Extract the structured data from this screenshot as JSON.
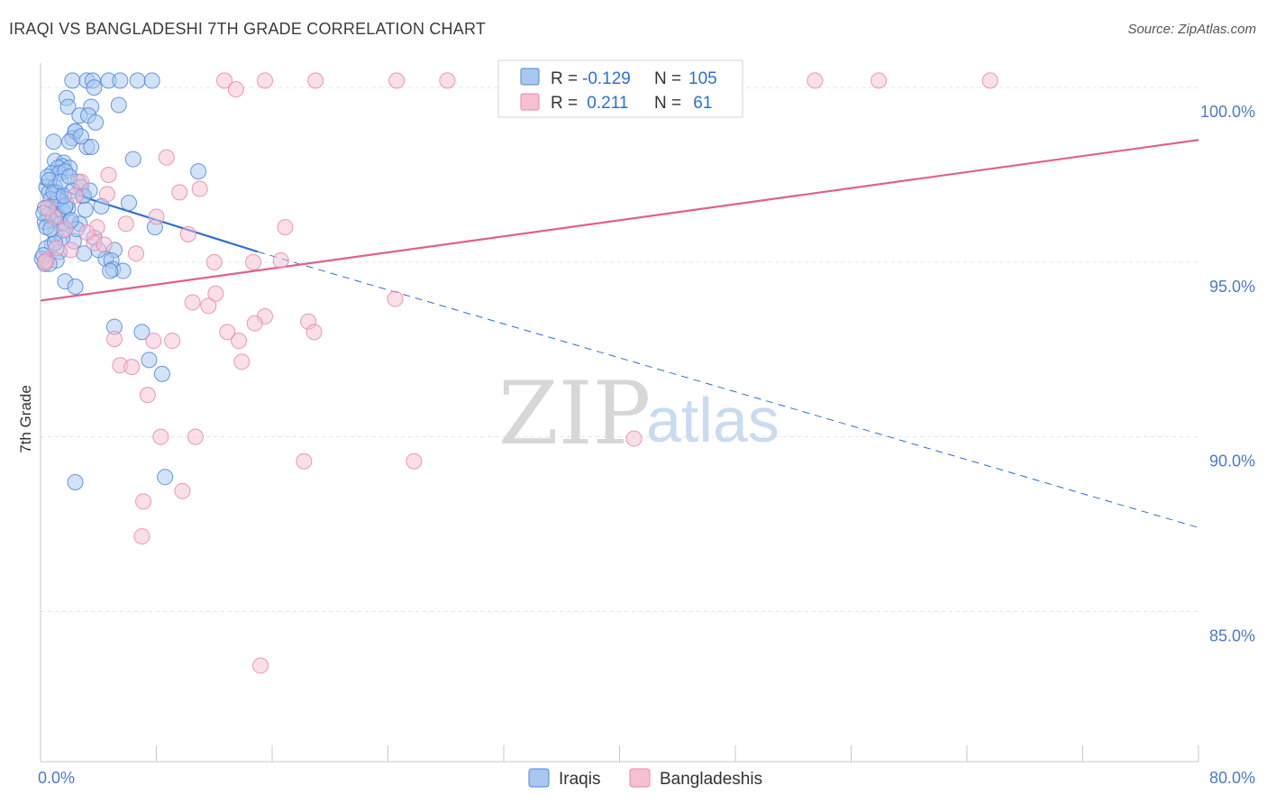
{
  "colors": {
    "blue_fill": "#a8c8f0",
    "blue_stroke": "#4f86d8",
    "blue_line": "#2e6fd0",
    "pink_fill": "#f6c0d2",
    "pink_stroke": "#e986a8",
    "pink_line": "#e0608e",
    "value_text": "#2e6fd0",
    "axis_tick_text": "#4a7cc9",
    "grid": "#e4e4e4"
  },
  "chart_data": {
    "type": "scatter",
    "title": "IRAQI VS BANGLADESHI 7TH GRADE CORRELATION CHART",
    "source": "Source: ZipAtlas.com",
    "xlabel": "",
    "ylabel": "7th Grade",
    "xlim": [
      0,
      80
    ],
    "ylim": [
      80.7,
      100.7
    ],
    "x_tick_labels": [
      "0.0%",
      "80.0%"
    ],
    "y_ticks": [
      {
        "value": 100,
        "label": "100.0%"
      },
      {
        "value": 95,
        "label": "95.0%"
      },
      {
        "value": 90,
        "label": "90.0%"
      },
      {
        "value": 85,
        "label": "85.0%"
      }
    ],
    "watermark": {
      "part1": "ZIP",
      "part2": "atlas"
    },
    "legend": {
      "rows": [
        {
          "r_label": "R =",
          "r_value": "-0.129",
          "n_label": "N =",
          "n_value": "105"
        },
        {
          "r_label": "R =",
          "r_value": " 0.211",
          "n_label": "N =",
          "n_value": " 61"
        }
      ]
    },
    "series": [
      {
        "name": "Iraqis",
        "trend": {
          "x": [
            0,
            15
          ],
          "y": [
            97.25,
            95.3
          ],
          "dashed_to": {
            "x": 80,
            "y": 87.4
          }
        },
        "points": [
          [
            2.2,
            100.2
          ],
          [
            3.2,
            100.2
          ],
          [
            3.6,
            100.2
          ],
          [
            4.7,
            100.2
          ],
          [
            5.5,
            100.2
          ],
          [
            6.7,
            100.2
          ],
          [
            7.7,
            100.2
          ],
          [
            3.7,
            100.0
          ],
          [
            1.8,
            99.7
          ],
          [
            1.9,
            99.45
          ],
          [
            3.5,
            99.45
          ],
          [
            5.4,
            99.5
          ],
          [
            2.7,
            99.2
          ],
          [
            3.3,
            99.2
          ],
          [
            3.8,
            99.0
          ],
          [
            2.4,
            98.75
          ],
          [
            2.2,
            98.55
          ],
          [
            2.4,
            98.75
          ],
          [
            0.9,
            98.45
          ],
          [
            2.0,
            98.45
          ],
          [
            3.2,
            98.3
          ],
          [
            3.5,
            98.3
          ],
          [
            6.4,
            97.95
          ],
          [
            1.0,
            97.9
          ],
          [
            1.6,
            97.85
          ],
          [
            1.5,
            97.75
          ],
          [
            1.2,
            97.7
          ],
          [
            2.0,
            97.7
          ],
          [
            0.8,
            97.55
          ],
          [
            1.3,
            97.55
          ],
          [
            1.7,
            97.6
          ],
          [
            10.9,
            97.6
          ],
          [
            0.5,
            97.45
          ],
          [
            2.6,
            97.3
          ],
          [
            0.4,
            97.15
          ],
          [
            1.0,
            97.15
          ],
          [
            2.8,
            97.15
          ],
          [
            0.6,
            97.0
          ],
          [
            1.1,
            97.0
          ],
          [
            2.9,
            96.9
          ],
          [
            0.7,
            96.8
          ],
          [
            1.4,
            96.75
          ],
          [
            0.9,
            96.65
          ],
          [
            1.8,
            96.65
          ],
          [
            4.2,
            96.6
          ],
          [
            6.1,
            96.7
          ],
          [
            0.3,
            96.55
          ],
          [
            1.1,
            96.5
          ],
          [
            1.6,
            96.45
          ],
          [
            0.5,
            96.35
          ],
          [
            1.2,
            96.3
          ],
          [
            0.7,
            96.2
          ],
          [
            0.3,
            96.15
          ],
          [
            2.0,
            96.15
          ],
          [
            1.4,
            96.1
          ],
          [
            7.9,
            96.0
          ],
          [
            1.6,
            95.9
          ],
          [
            1.0,
            95.8
          ],
          [
            3.7,
            95.7
          ],
          [
            2.3,
            95.6
          ],
          [
            0.8,
            95.5
          ],
          [
            0.4,
            95.4
          ],
          [
            1.3,
            95.3
          ],
          [
            5.1,
            95.35
          ],
          [
            3.0,
            95.25
          ],
          [
            0.1,
            95.1
          ],
          [
            4.5,
            95.1
          ],
          [
            4.9,
            95.05
          ],
          [
            0.3,
            94.95
          ],
          [
            5.0,
            94.8
          ],
          [
            5.7,
            94.75
          ],
          [
            4.8,
            94.75
          ],
          [
            1.7,
            94.45
          ],
          [
            2.4,
            94.3
          ],
          [
            5.1,
            93.15
          ],
          [
            7.0,
            93.0
          ],
          [
            7.5,
            92.2
          ],
          [
            8.4,
            91.8
          ],
          [
            2.4,
            88.7
          ],
          [
            8.6,
            88.85
          ],
          [
            0.2,
            96.4
          ],
          [
            1.9,
            96.55
          ],
          [
            0.6,
            97.35
          ],
          [
            2.2,
            97.05
          ],
          [
            3.0,
            96.9
          ],
          [
            0.4,
            96.0
          ],
          [
            1.5,
            95.7
          ],
          [
            2.7,
            96.1
          ],
          [
            1.2,
            96.8
          ],
          [
            0.9,
            97.0
          ],
          [
            2.5,
            95.95
          ],
          [
            1.0,
            95.55
          ],
          [
            1.7,
            96.6
          ],
          [
            3.4,
            97.05
          ],
          [
            2.1,
            96.2
          ],
          [
            0.7,
            95.95
          ],
          [
            1.4,
            97.3
          ],
          [
            3.1,
            96.5
          ],
          [
            0.2,
            95.2
          ],
          [
            2.8,
            98.6
          ],
          [
            1.1,
            95.05
          ],
          [
            4.0,
            95.35
          ],
          [
            0.6,
            94.95
          ],
          [
            2.0,
            97.45
          ],
          [
            1.6,
            96.9
          ]
        ]
      },
      {
        "name": "Bangladeshis",
        "trend": {
          "x": [
            0,
            80
          ],
          "y": [
            93.9,
            98.5
          ]
        },
        "points": [
          [
            12.7,
            100.2
          ],
          [
            15.5,
            100.2
          ],
          [
            19.0,
            100.2
          ],
          [
            24.6,
            100.2
          ],
          [
            28.1,
            100.2
          ],
          [
            53.5,
            100.2
          ],
          [
            57.9,
            100.2
          ],
          [
            65.6,
            100.2
          ],
          [
            13.5,
            99.95
          ],
          [
            8.7,
            98.0
          ],
          [
            11.0,
            97.1
          ],
          [
            9.6,
            97.0
          ],
          [
            4.6,
            96.95
          ],
          [
            4.7,
            97.5
          ],
          [
            8.0,
            96.3
          ],
          [
            5.9,
            96.1
          ],
          [
            16.9,
            96.0
          ],
          [
            10.2,
            95.8
          ],
          [
            3.7,
            95.55
          ],
          [
            6.6,
            95.25
          ],
          [
            12.0,
            95.0
          ],
          [
            14.7,
            95.0
          ],
          [
            16.6,
            95.05
          ],
          [
            0.4,
            95.05
          ],
          [
            12.1,
            94.1
          ],
          [
            10.5,
            93.85
          ],
          [
            11.6,
            93.75
          ],
          [
            24.5,
            93.95
          ],
          [
            15.5,
            93.45
          ],
          [
            18.5,
            93.3
          ],
          [
            14.8,
            93.25
          ],
          [
            12.9,
            93.0
          ],
          [
            18.9,
            93.0
          ],
          [
            5.1,
            92.8
          ],
          [
            7.8,
            92.75
          ],
          [
            9.1,
            92.75
          ],
          [
            13.7,
            92.75
          ],
          [
            5.5,
            92.05
          ],
          [
            6.3,
            92.0
          ],
          [
            13.9,
            92.15
          ],
          [
            7.4,
            91.2
          ],
          [
            8.3,
            90.0
          ],
          [
            10.7,
            90.0
          ],
          [
            41.0,
            89.95
          ],
          [
            18.2,
            89.3
          ],
          [
            25.8,
            89.3
          ],
          [
            9.8,
            88.45
          ],
          [
            7.1,
            88.15
          ],
          [
            7.0,
            87.15
          ],
          [
            15.2,
            83.45
          ],
          [
            2.1,
            95.35
          ],
          [
            0.9,
            96.3
          ],
          [
            3.9,
            96.0
          ],
          [
            2.4,
            96.9
          ],
          [
            1.1,
            95.4
          ],
          [
            3.2,
            95.85
          ],
          [
            0.5,
            96.55
          ],
          [
            4.4,
            95.5
          ],
          [
            1.7,
            95.95
          ],
          [
            2.8,
            97.3
          ],
          [
            0.3,
            95.0
          ]
        ]
      }
    ]
  }
}
